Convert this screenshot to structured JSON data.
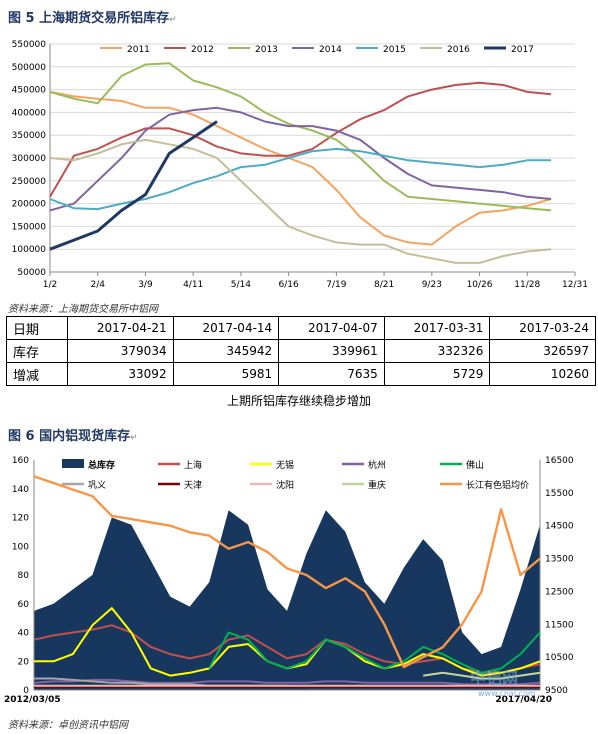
{
  "fig5": {
    "title": "图 5 上海期货交易所铝库存",
    "source": "资料来源：上海期货交易所中铝网",
    "caption": "上期所铝库存继续稳步增加",
    "chart_data": {
      "type": "line",
      "title": "",
      "ylim": [
        50000,
        550000
      ],
      "yticks": [
        "50000",
        "100000",
        "150000",
        "200000",
        "250000",
        "300000",
        "350000",
        "400000",
        "450000",
        "500000",
        "550000"
      ],
      "xticks": [
        "1/2",
        "2/4",
        "3/9",
        "4/11",
        "5/14",
        "6/16",
        "7/19",
        "8/21",
        "9/23",
        "10/26",
        "11/28",
        "12/31"
      ],
      "x": [
        0,
        1,
        2,
        3,
        4,
        5,
        6,
        7,
        8,
        9,
        10,
        11,
        12,
        13,
        14,
        15,
        16,
        17,
        18,
        19,
        20,
        21,
        22
      ],
      "series": [
        {
          "name": "2011",
          "color": "#f4a460",
          "values": [
            445000,
            435000,
            430000,
            425000,
            410000,
            410000,
            395000,
            370000,
            345000,
            320000,
            300000,
            280000,
            230000,
            170000,
            130000,
            115000,
            110000,
            150000,
            180000,
            185000,
            195000,
            210000,
            null
          ]
        },
        {
          "name": "2012",
          "color": "#c0504d",
          "values": [
            215000,
            305000,
            320000,
            345000,
            365000,
            365000,
            350000,
            325000,
            310000,
            305000,
            305000,
            320000,
            355000,
            385000,
            405000,
            435000,
            450000,
            460000,
            465000,
            460000,
            445000,
            440000,
            null
          ]
        },
        {
          "name": "2013",
          "color": "#9bbb59",
          "values": [
            445000,
            430000,
            420000,
            480000,
            505000,
            508000,
            470000,
            455000,
            435000,
            400000,
            375000,
            360000,
            340000,
            300000,
            250000,
            215000,
            210000,
            205000,
            200000,
            195000,
            190000,
            185000,
            null
          ]
        },
        {
          "name": "2014",
          "color": "#8064a2",
          "values": [
            185000,
            200000,
            250000,
            300000,
            360000,
            395000,
            405000,
            410000,
            400000,
            380000,
            370000,
            370000,
            360000,
            340000,
            300000,
            265000,
            240000,
            235000,
            230000,
            225000,
            215000,
            210000,
            null
          ]
        },
        {
          "name": "2015",
          "color": "#4bacc6",
          "values": [
            210000,
            190000,
            188000,
            200000,
            210000,
            225000,
            245000,
            260000,
            280000,
            285000,
            300000,
            315000,
            320000,
            315000,
            305000,
            295000,
            290000,
            285000,
            280000,
            285000,
            295000,
            295000,
            null
          ]
        },
        {
          "name": "2016",
          "color": "#c4bd97",
          "values": [
            300000,
            295000,
            310000,
            330000,
            340000,
            330000,
            320000,
            300000,
            250000,
            200000,
            150000,
            130000,
            115000,
            110000,
            110000,
            90000,
            80000,
            70000,
            70000,
            85000,
            95000,
            100000,
            null
          ]
        },
        {
          "name": "2017",
          "color": "#1f3864",
          "values": [
            100000,
            120000,
            140000,
            185000,
            220000,
            310000,
            345000,
            380000,
            null,
            null,
            null,
            null,
            null,
            null,
            null,
            null,
            null,
            null,
            null,
            null,
            null,
            null,
            null
          ]
        }
      ]
    },
    "table": {
      "rows": [
        {
          "label": "日期",
          "cells": [
            "2017-04-21",
            "2017-04-14",
            "2017-04-07",
            "2017-03-31",
            "2017-03-24"
          ]
        },
        {
          "label": "库存",
          "cells": [
            "379034",
            "345942",
            "339961",
            "332326",
            "326597"
          ]
        },
        {
          "label": "增减",
          "cells": [
            "33092",
            "5981",
            "7635",
            "5729",
            "10260"
          ]
        }
      ]
    }
  },
  "fig6": {
    "title": "图 6 国内铝现货库存",
    "source": "资料来源：卓创资讯中铝网",
    "watermark": "中铝网",
    "watermark_url": "www.cnal.com",
    "chart_data": {
      "type": "area",
      "title": "",
      "ylim": [
        0,
        160
      ],
      "y2lim": [
        9500,
        16500
      ],
      "yticks": [
        "0",
        "20",
        "40",
        "60",
        "80",
        "100",
        "120",
        "140",
        "160"
      ],
      "y2ticks": [
        "9500",
        "10500",
        "11500",
        "12500",
        "13500",
        "14500",
        "15500",
        "16500"
      ],
      "xstart": "2012/03/05",
      "xend": "2017/04/20",
      "x": [
        0,
        1,
        2,
        3,
        4,
        5,
        6,
        7,
        8,
        9,
        10,
        11,
        12,
        13,
        14,
        15,
        16,
        17,
        18,
        19,
        20,
        21,
        22,
        23,
        24,
        25,
        26
      ],
      "series": [
        {
          "name": "总库存",
          "color": "#17375e",
          "axis": "left",
          "kind": "area",
          "values": [
            55,
            60,
            70,
            80,
            120,
            115,
            90,
            65,
            58,
            75,
            125,
            115,
            70,
            55,
            95,
            125,
            110,
            75,
            60,
            85,
            105,
            90,
            40,
            25,
            30,
            70,
            115
          ]
        },
        {
          "name": "上海",
          "color": "#c0504d",
          "axis": "left",
          "values": [
            35,
            38,
            40,
            42,
            45,
            40,
            30,
            25,
            22,
            25,
            35,
            38,
            30,
            22,
            25,
            35,
            32,
            25,
            20,
            18,
            20,
            22,
            15,
            12,
            12,
            15,
            18
          ]
        },
        {
          "name": "无锡",
          "color": "#ffff00",
          "axis": "left",
          "values": [
            20,
            20,
            25,
            45,
            57,
            40,
            15,
            10,
            12,
            15,
            30,
            32,
            20,
            15,
            18,
            35,
            30,
            20,
            15,
            18,
            25,
            22,
            15,
            10,
            12,
            15,
            20
          ]
        },
        {
          "name": "杭州",
          "color": "#8064a2",
          "axis": "left",
          "values": [
            5,
            6,
            6,
            7,
            7,
            6,
            5,
            5,
            5,
            6,
            6,
            6,
            5,
            5,
            5,
            6,
            6,
            5,
            5,
            5,
            5,
            5,
            4,
            4,
            4,
            4,
            5
          ]
        },
        {
          "name": "佛山",
          "color": "#00b050",
          "axis": "left",
          "values": [
            null,
            null,
            null,
            null,
            null,
            null,
            null,
            null,
            null,
            15,
            40,
            35,
            20,
            15,
            20,
            35,
            30,
            22,
            15,
            20,
            30,
            25,
            18,
            12,
            15,
            25,
            40
          ]
        },
        {
          "name": "巩义",
          "color": "#a6a6a6",
          "axis": "left",
          "values": [
            8,
            8,
            7,
            6,
            5,
            5,
            4,
            4,
            4,
            3,
            3,
            3,
            3,
            3,
            2,
            2,
            2,
            2,
            2,
            2,
            2,
            2,
            2,
            2,
            2,
            2,
            2
          ]
        },
        {
          "name": "天津",
          "color": "#7f0000",
          "axis": "left",
          "values": [
            2,
            2,
            2,
            2,
            2,
            2,
            2,
            2,
            2,
            2,
            2,
            2,
            2,
            2,
            2,
            2,
            2,
            2,
            2,
            2,
            2,
            2,
            2,
            2,
            2,
            2,
            2
          ]
        },
        {
          "name": "沈阳",
          "color": "#e6b9b8",
          "axis": "left",
          "values": [
            3,
            3,
            3,
            3,
            3,
            3,
            3,
            3,
            3,
            3,
            3,
            3,
            3,
            3,
            3,
            3,
            3,
            3,
            3,
            3,
            3,
            3,
            3,
            3,
            3,
            3,
            3
          ]
        },
        {
          "name": "重庆",
          "color": "#c3d69b",
          "axis": "left",
          "values": [
            null,
            null,
            null,
            null,
            null,
            null,
            null,
            null,
            null,
            null,
            null,
            null,
            null,
            null,
            null,
            null,
            null,
            null,
            null,
            null,
            10,
            12,
            10,
            8,
            8,
            10,
            12
          ]
        },
        {
          "name": "长江有色铝均价",
          "color": "#f79646",
          "axis": "right",
          "values": [
            16000,
            15800,
            15600,
            15400,
            14800,
            14700,
            14600,
            14500,
            14300,
            14200,
            13800,
            14000,
            13700,
            13200,
            13000,
            12600,
            12900,
            12500,
            11500,
            10200,
            10500,
            10800,
            11500,
            12500,
            15000,
            13000,
            13500
          ]
        }
      ]
    }
  }
}
